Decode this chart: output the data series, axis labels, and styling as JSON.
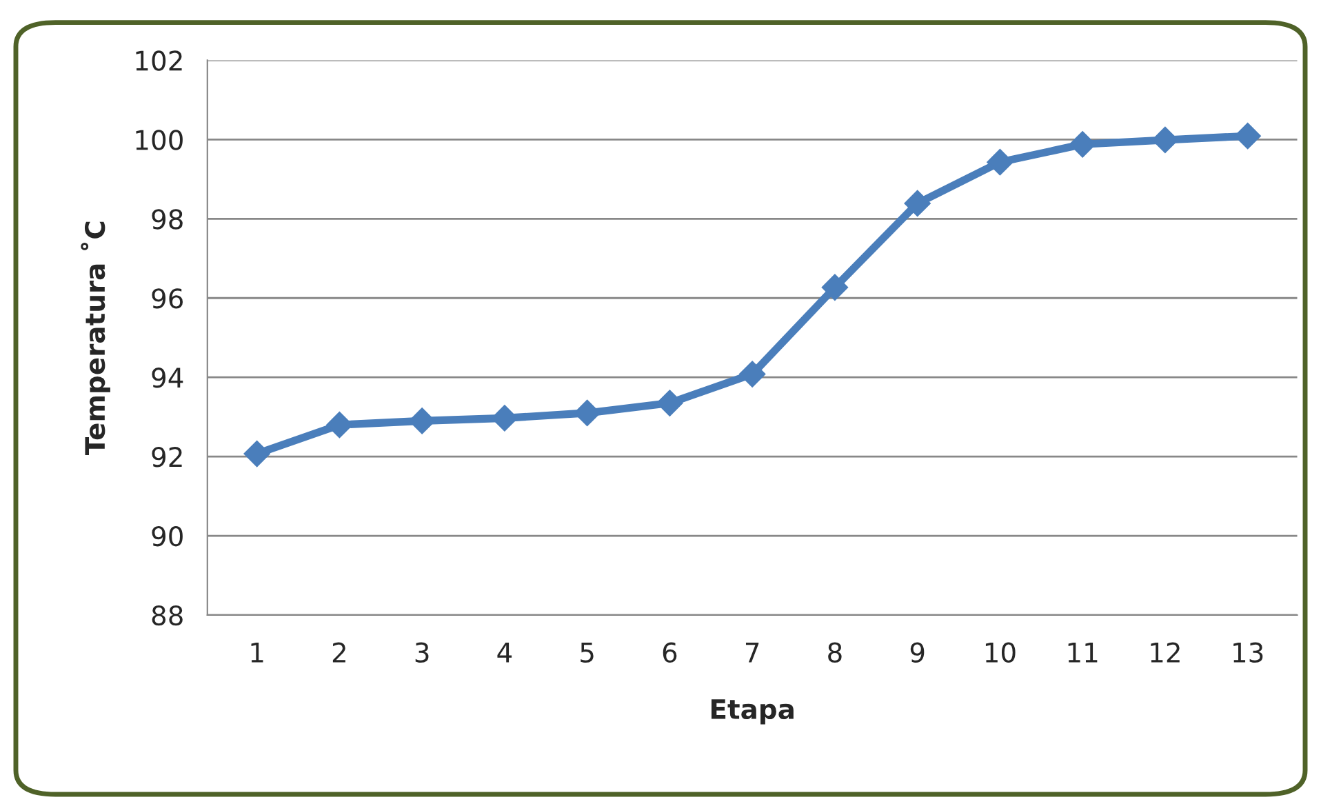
{
  "chart_data": {
    "type": "line",
    "xlabel": "Etapa",
    "ylabel": "Temperatura ˚C",
    "categories": [
      "1",
      "2",
      "3",
      "4",
      "5",
      "6",
      "7",
      "8",
      "9",
      "10",
      "11",
      "12",
      "13"
    ],
    "series": [
      {
        "color": "#4a7ebb",
        "values": [
          92.07,
          92.8,
          92.9,
          92.97,
          93.1,
          93.35,
          94.08,
          96.27,
          98.39,
          99.43,
          99.88,
          99.99,
          100.09
        ]
      }
    ],
    "ylim": [
      88,
      102
    ],
    "yticks": [
      88,
      90,
      92,
      94,
      96,
      98,
      100,
      102
    ],
    "grid": "y",
    "marker": "diamond",
    "line_style": "solid"
  }
}
